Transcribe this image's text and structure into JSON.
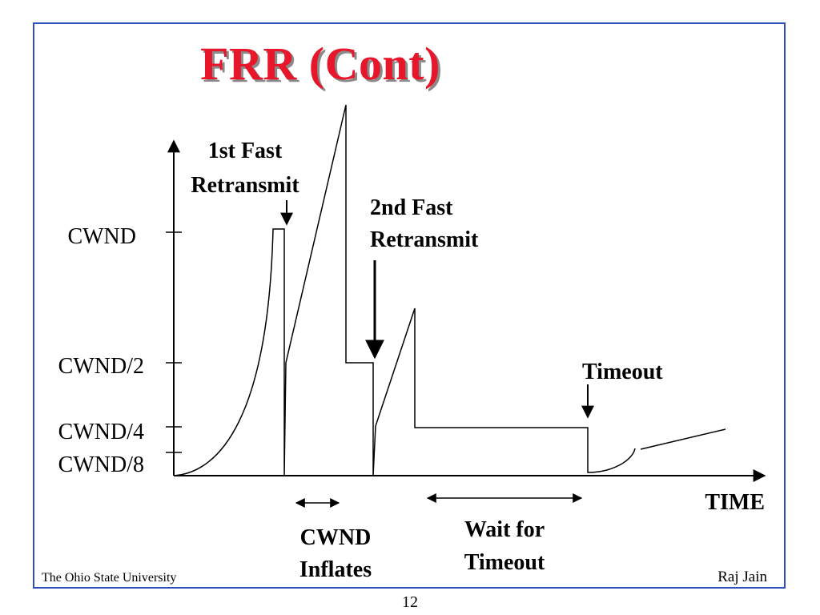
{
  "title": "FRR (Cont)",
  "y_labels": {
    "cwnd": "CWND",
    "cwnd_half": "CWND/2",
    "cwnd_quarter": "CWND/4",
    "cwnd_eighth": "CWND/8"
  },
  "x_label": "TIME",
  "annotations": {
    "first_fast_retransmit": [
      "1st Fast",
      "Retransmit"
    ],
    "second_fast_retransmit": [
      "2nd Fast",
      "Retransmit"
    ],
    "timeout": "Timeout",
    "cwnd_inflates": [
      "CWND",
      "Inflates"
    ],
    "wait_for_timeout": [
      "Wait for",
      "Timeout"
    ]
  },
  "footer": {
    "left": "The Ohio State University",
    "right": "Raj Jain",
    "page_number": "12"
  }
}
